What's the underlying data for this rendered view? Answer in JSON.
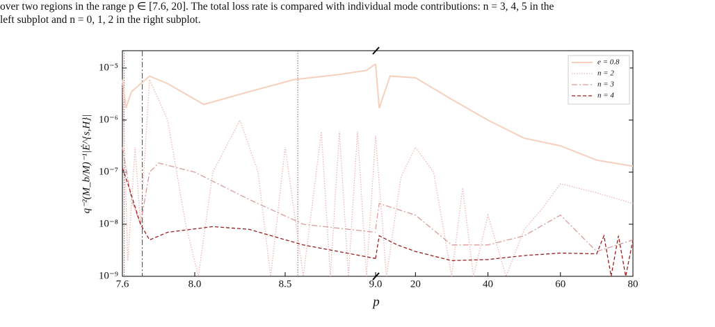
{
  "caption": {
    "lines": [
      "over two regions in the range p ∈ [7.6, 20]. The total loss rate is compared with individual mode contributions: n = 3, 4, 5 in the",
      "left subplot and n = 0, 1, 2 in the right subplot."
    ]
  },
  "chart_data": {
    "type": "line",
    "ylabel": "q⁻²(M_b/M)⁻¹|Ė^{s,H}|",
    "xlabel": "p",
    "log_y": true,
    "ylim": [
      1e-09,
      2.15e-05
    ],
    "yticks": [
      {
        "value": 1e-09,
        "label": "10⁻⁹"
      },
      {
        "value": 1e-08,
        "label": "10⁻⁸"
      },
      {
        "value": 1e-07,
        "label": "10⁻⁷"
      },
      {
        "value": 1e-06,
        "label": "10⁻⁶"
      },
      {
        "value": 1e-05,
        "label": "10⁻⁵"
      }
    ],
    "legend": "upper right",
    "panels": [
      {
        "xlim": [
          7.6,
          9.0
        ],
        "xticks": [
          7.6,
          {
            "value": 8,
            "label": "8.0"
          },
          8.5,
          {
            "value": 9,
            "label": "9.0"
          }
        ]
      },
      {
        "xlim": [
          9,
          80
        ],
        "xticks": [
          20,
          40,
          60,
          80
        ]
      }
    ],
    "vlines": [
      {
        "value": 7.61,
        "style": "dotted"
      },
      {
        "value": 7.71,
        "style": "dashdot"
      },
      {
        "value": 8.57,
        "style": "dotted"
      }
    ],
    "series": [
      {
        "name": "e = 0.8",
        "color": "#f7cfbd",
        "style": "solid",
        "panels": [
          {
            "x": [
              7.6,
              7.62,
              7.65,
              7.75,
              7.85,
              8.05,
              8.3,
              8.55,
              8.8,
              8.95,
              9.0
            ],
            "values": [
              6e-06,
              1.7e-06,
              3.5e-06,
              7e-06,
              5e-06,
              2e-06,
              3.5e-06,
              6e-06,
              7.5e-06,
              9e-06,
              1.2e-05
            ]
          },
          {
            "x": [
              9,
              10,
              13,
              20,
              30,
              40,
              50,
              60,
              70,
              80
            ],
            "values": [
              1.2e-05,
              1.7e-06,
              7e-06,
              6.5e-06,
              2.5e-06,
              1e-06,
              4.5e-07,
              3.2e-07,
              1.7e-07,
              1.3e-07
            ]
          }
        ]
      },
      {
        "name": "n = 2",
        "color": "#eeb4b4",
        "style": "dotted",
        "panels": [
          {
            "x": [
              7.6,
              7.63,
              7.67,
              7.7,
              7.75,
              7.85,
              7.95,
              8.02,
              8.1,
              8.25,
              8.35,
              8.42,
              8.5,
              8.6,
              8.7,
              8.75,
              8.8,
              8.85,
              8.9,
              8.95,
              9.0
            ],
            "values": [
              6e-06,
              2e-09,
              3e-07,
              1e-08,
              6e-06,
              1e-06,
              1e-08,
              1e-09,
              1e-07,
              1e-06,
              1e-07,
              1e-09,
              3e-07,
              1e-09,
              6e-07,
              1e-09,
              6e-07,
              1e-09,
              6e-07,
              1e-09,
              5e-07
            ]
          },
          {
            "x": [
              9,
              12,
              16,
              20,
              25,
              30,
              33,
              36,
              40,
              45,
              50,
              55,
              60,
              70,
              80
            ],
            "values": [
              5e-07,
              1e-09,
              8e-08,
              3e-07,
              1e-07,
              1e-09,
              5e-08,
              1e-09,
              1.5e-08,
              1e-09,
              8e-09,
              2e-08,
              6e-08,
              4e-08,
              2.5e-08
            ]
          }
        ]
      },
      {
        "name": "n = 3",
        "color": "#d99a9a",
        "style": "dashdot",
        "panels": [
          {
            "x": [
              7.6,
              7.65,
              7.7,
              7.75,
              7.8,
              8.0,
              8.3,
              8.6,
              9.0
            ],
            "values": [
              3e-07,
              3e-08,
              1e-08,
              1e-07,
              1.5e-07,
              1e-07,
              3e-08,
              1e-08,
              7e-09
            ]
          },
          {
            "x": [
              9,
              10,
              20,
              30,
              40,
              50,
              60,
              70,
              80
            ],
            "values": [
              8e-09,
              2.5e-08,
              1.5e-08,
              4e-09,
              4e-09,
              6e-09,
              1.5e-08,
              3e-09,
              5e-09
            ]
          }
        ]
      },
      {
        "name": "n = 4",
        "color": "#9b1c1c",
        "style": "dashed",
        "panels": [
          {
            "x": [
              7.6,
              7.63,
              7.7,
              7.75,
              7.85,
              8.1,
              8.3,
              8.6,
              9.0
            ],
            "values": [
              1.2e-07,
              6e-08,
              1e-08,
              5e-09,
              7e-09,
              9e-09,
              8e-09,
              4e-09,
              2.2e-09
            ]
          },
          {
            "x": [
              9,
              10,
              15,
              20,
              30,
              40,
              50,
              60,
              70,
              72,
              74,
              76,
              78,
              80
            ],
            "values": [
              2.2e-09,
              6e-09,
              4e-09,
              3e-09,
              2e-09,
              2.1e-09,
              2.5e-09,
              2.8e-09,
              2.7e-09,
              6e-09,
              1e-09,
              6e-09,
              1e-09,
              5e-09
            ]
          }
        ]
      }
    ]
  }
}
